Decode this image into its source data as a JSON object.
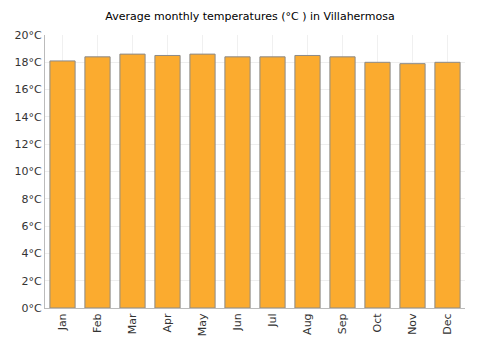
{
  "chart_data": {
    "type": "bar",
    "title": "Average monthly temperatures (°C ) in Villahermosa",
    "categories": [
      "Jan",
      "Feb",
      "Mar",
      "Apr",
      "May",
      "Jun",
      "Jul",
      "Aug",
      "Sep",
      "Oct",
      "Nov",
      "Dec"
    ],
    "values": [
      18.1,
      18.4,
      18.6,
      18.5,
      18.6,
      18.4,
      18.4,
      18.5,
      18.4,
      18.0,
      17.9,
      18.0
    ],
    "color": "#fbab2f",
    "ylim": [
      0,
      20
    ],
    "yticks": [
      {
        "value": 0,
        "label": "0°C"
      },
      {
        "value": 2,
        "label": "2°C"
      },
      {
        "value": 4,
        "label": "4°C"
      },
      {
        "value": 6,
        "label": "6°C"
      },
      {
        "value": 8,
        "label": "8°C"
      },
      {
        "value": 10,
        "label": "10°C"
      },
      {
        "value": 12,
        "label": "12°C"
      },
      {
        "value": 14,
        "label": "14°C"
      },
      {
        "value": 16,
        "label": "16°C"
      },
      {
        "value": 18,
        "label": "18°C"
      },
      {
        "value": 20,
        "label": "20°C"
      }
    ],
    "grid": true
  }
}
